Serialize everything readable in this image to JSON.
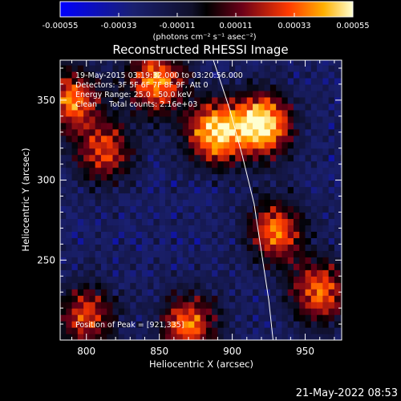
{
  "colorbar": {
    "tick_labels": [
      "-0.00055",
      "-0.00033",
      "-0.00011",
      "0.00011",
      "0.00033",
      "0.00055"
    ],
    "unit_label": "(photons cm⁻² s⁻¹ asec⁻²)",
    "range": [
      -0.00055,
      0.00055
    ]
  },
  "title": "Reconstructed RHESSI Image",
  "info": {
    "line1": "19-May-2015 03:19:32.000 to 03:20:56.000",
    "line2": "Detectors: 3F 5F 6F 7F 8F 9F, Att 0",
    "line3": "Energy Range: 25.0 - 50.0 keV",
    "line4": "Clean     Total counts: 2.16e+03"
  },
  "peak_label": "Position of Peak = [921,335]",
  "footer_date": "21-May-2022 08:53",
  "chart_data": {
    "type": "heatmap",
    "title": "Reconstructed RHESSI Image",
    "xlabel": "Heliocentric X (arcsec)",
    "ylabel": "Heliocentric Y (arcsec)",
    "xlim": [
      782,
      975
    ],
    "ylim": [
      200,
      375
    ],
    "x_ticks": [
      800,
      850,
      900,
      950
    ],
    "y_ticks": [
      250,
      300,
      350
    ],
    "limb_curve": [
      [
        887,
        375
      ],
      [
        898,
        345
      ],
      [
        907,
        315
      ],
      [
        915,
        285
      ],
      [
        920,
        255
      ],
      [
        925,
        225
      ],
      [
        928,
        200
      ]
    ],
    "hotspots": [
      {
        "x": 921,
        "y": 335,
        "value": 0.00055
      },
      {
        "x": 888,
        "y": 330,
        "value": 0.0005
      },
      {
        "x": 930,
        "y": 268,
        "value": 0.0004
      },
      {
        "x": 848,
        "y": 362,
        "value": 0.00045
      },
      {
        "x": 790,
        "y": 350,
        "value": 0.0004
      },
      {
        "x": 812,
        "y": 318,
        "value": 0.00035
      },
      {
        "x": 960,
        "y": 230,
        "value": 0.0004
      },
      {
        "x": 870,
        "y": 210,
        "value": 0.0004
      },
      {
        "x": 800,
        "y": 215,
        "value": 0.00035
      }
    ],
    "peak": [
      921,
      335
    ]
  }
}
